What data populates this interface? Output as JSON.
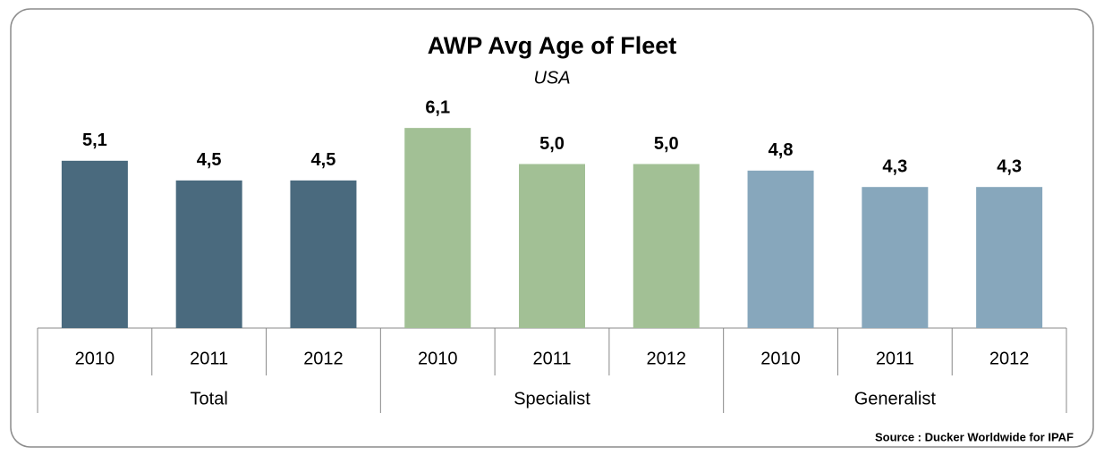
{
  "chart_data": {
    "type": "bar",
    "title": "AWP Avg Age of Fleet",
    "subtitle": "USA",
    "categories": [
      "2010",
      "2011",
      "2012"
    ],
    "series": [
      {
        "name": "Total",
        "color": "#4a6a7e",
        "values": [
          5.1,
          4.5,
          4.5
        ],
        "value_labels": [
          "5,1",
          "4,5",
          "4,5"
        ]
      },
      {
        "name": "Specialist",
        "color": "#a2c095",
        "values": [
          6.1,
          5.0,
          5.0
        ],
        "value_labels": [
          "6,1",
          "5,0",
          "5,0"
        ]
      },
      {
        "name": "Generalist",
        "color": "#87a7bc",
        "values": [
          4.8,
          4.3,
          4.3
        ],
        "value_labels": [
          "4,8",
          "4,3",
          "4,3"
        ]
      }
    ],
    "source": "Source : Ducker Worldwide for IPAF"
  }
}
